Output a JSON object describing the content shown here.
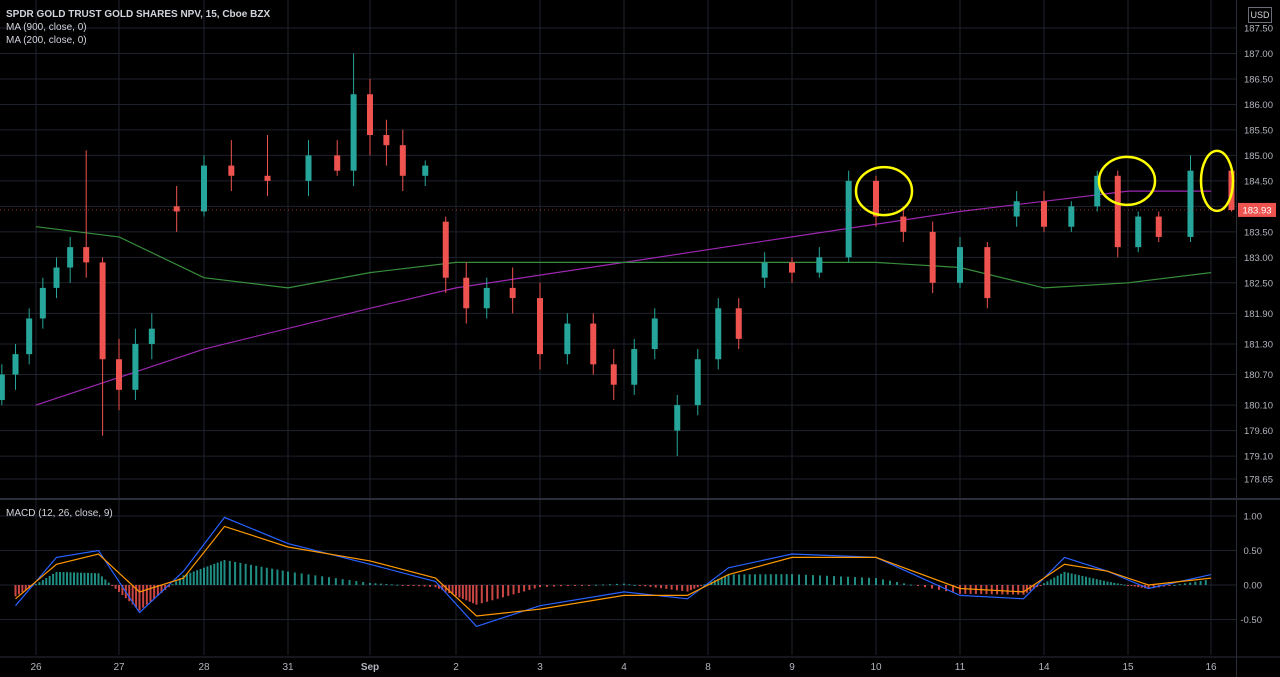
{
  "chart_data": {
    "type": "candlestick",
    "title": "SPDR GOLD TRUST GOLD SHARES NPV, 15, Cboe BZX",
    "currency_label": "USD",
    "indicators": [
      "MA (900, close, 0)",
      "MA (200, close, 0)"
    ],
    "price_axis_ticks": [
      187.5,
      187.0,
      186.5,
      186.0,
      185.5,
      185.0,
      184.5,
      184.0,
      183.5,
      183.0,
      182.5,
      181.9,
      181.3,
      180.7,
      180.1,
      179.6,
      179.1,
      178.65
    ],
    "price_axis_labels": [
      "187.50",
      "187.00",
      "186.50",
      "186.00",
      "185.50",
      "185.00",
      "184.50",
      "184.00",
      "183.50",
      "183.00",
      "182.50",
      "181.90",
      "181.30",
      "180.70",
      "180.10",
      "179.60",
      "179.10",
      "178.65"
    ],
    "last_price": "183.93",
    "x_labels": [
      "26",
      "27",
      "28",
      "31",
      "Sep",
      "2",
      "3",
      "4",
      "8",
      "9",
      "10",
      "11",
      "14",
      "15",
      "16"
    ],
    "price_series": [
      {
        "x": "26",
        "open": 180.2,
        "high": 180.9,
        "low": 180.1,
        "close": 180.7
      },
      {
        "x": "26",
        "open": 180.7,
        "high": 181.3,
        "low": 180.4,
        "close": 181.1
      },
      {
        "x": "26",
        "open": 181.1,
        "high": 182.0,
        "low": 180.9,
        "close": 181.8
      },
      {
        "x": "26",
        "open": 181.8,
        "high": 182.6,
        "low": 181.6,
        "close": 182.4
      },
      {
        "x": "26",
        "open": 182.4,
        "high": 183.0,
        "low": 182.2,
        "close": 182.8
      },
      {
        "x": "26",
        "open": 182.8,
        "high": 183.4,
        "low": 182.5,
        "close": 183.2
      },
      {
        "x": "27",
        "open": 183.2,
        "high": 185.1,
        "low": 182.6,
        "close": 182.9
      },
      {
        "x": "27",
        "open": 182.9,
        "high": 183.0,
        "low": 179.5,
        "close": 181.0
      },
      {
        "x": "27",
        "open": 181.0,
        "high": 181.4,
        "low": 180.0,
        "close": 180.4
      },
      {
        "x": "27",
        "open": 180.4,
        "high": 181.6,
        "low": 180.2,
        "close": 181.3
      },
      {
        "x": "27",
        "open": 181.3,
        "high": 181.9,
        "low": 181.0,
        "close": 181.6
      },
      {
        "x": "28",
        "open": 184.0,
        "high": 184.4,
        "low": 183.5,
        "close": 183.9
      },
      {
        "x": "28",
        "open": 183.9,
        "high": 185.0,
        "low": 183.8,
        "close": 184.8
      },
      {
        "x": "28",
        "open": 184.8,
        "high": 185.3,
        "low": 184.3,
        "close": 184.6
      },
      {
        "x": "31",
        "open": 184.6,
        "high": 185.4,
        "low": 184.2,
        "close": 184.5
      },
      {
        "x": "31",
        "open": 184.5,
        "high": 185.3,
        "low": 184.2,
        "close": 185.0
      },
      {
        "x": "Sep",
        "open": 185.0,
        "high": 185.3,
        "low": 184.6,
        "close": 184.7
      },
      {
        "x": "Sep",
        "open": 184.7,
        "high": 187.0,
        "low": 184.4,
        "close": 186.2
      },
      {
        "x": "Sep",
        "open": 186.2,
        "high": 186.5,
        "low": 185.0,
        "close": 185.4
      },
      {
        "x": "Sep",
        "open": 185.4,
        "high": 185.7,
        "low": 184.8,
        "close": 185.2
      },
      {
        "x": "Sep",
        "open": 185.2,
        "high": 185.5,
        "low": 184.3,
        "close": 184.6
      },
      {
        "x": "2",
        "open": 184.6,
        "high": 184.9,
        "low": 184.4,
        "close": 184.8
      },
      {
        "x": "2",
        "open": 183.7,
        "high": 183.8,
        "low": 182.3,
        "close": 182.6
      },
      {
        "x": "2",
        "open": 182.6,
        "high": 182.9,
        "low": 181.7,
        "close": 182.0
      },
      {
        "x": "2",
        "open": 182.0,
        "high": 182.6,
        "low": 181.8,
        "close": 182.4
      },
      {
        "x": "3",
        "open": 182.4,
        "high": 182.8,
        "low": 181.9,
        "close": 182.2
      },
      {
        "x": "3",
        "open": 182.2,
        "high": 182.5,
        "low": 180.8,
        "close": 181.1
      },
      {
        "x": "3",
        "open": 181.1,
        "high": 181.9,
        "low": 180.9,
        "close": 181.7
      },
      {
        "x": "4",
        "open": 181.7,
        "high": 181.9,
        "low": 180.7,
        "close": 180.9
      },
      {
        "x": "4",
        "open": 180.9,
        "high": 181.2,
        "low": 180.2,
        "close": 180.5
      },
      {
        "x": "4",
        "open": 180.5,
        "high": 181.4,
        "low": 180.3,
        "close": 181.2
      },
      {
        "x": "4",
        "open": 181.2,
        "high": 182.0,
        "low": 181.0,
        "close": 181.8
      },
      {
        "x": "8",
        "open": 179.6,
        "high": 180.3,
        "low": 179.1,
        "close": 180.1
      },
      {
        "x": "8",
        "open": 180.1,
        "high": 181.2,
        "low": 179.9,
        "close": 181.0
      },
      {
        "x": "8",
        "open": 181.0,
        "high": 182.2,
        "low": 180.8,
        "close": 182.0
      },
      {
        "x": "8",
        "open": 182.0,
        "high": 182.2,
        "low": 181.2,
        "close": 181.4
      },
      {
        "x": "9",
        "open": 182.6,
        "high": 183.1,
        "low": 182.4,
        "close": 182.9
      },
      {
        "x": "9",
        "open": 182.9,
        "high": 183.0,
        "low": 182.5,
        "close": 182.7
      },
      {
        "x": "9",
        "open": 182.7,
        "high": 183.2,
        "low": 182.6,
        "close": 183.0
      },
      {
        "x": "10",
        "open": 183.0,
        "high": 184.7,
        "low": 182.9,
        "close": 184.5
      },
      {
        "x": "10",
        "open": 184.5,
        "high": 184.6,
        "low": 183.6,
        "close": 183.8
      },
      {
        "x": "10",
        "open": 183.8,
        "high": 184.0,
        "low": 183.3,
        "close": 183.5
      },
      {
        "x": "11",
        "open": 183.5,
        "high": 183.7,
        "low": 182.3,
        "close": 182.5
      },
      {
        "x": "11",
        "open": 182.5,
        "high": 183.4,
        "low": 182.4,
        "close": 183.2
      },
      {
        "x": "11",
        "open": 183.2,
        "high": 183.3,
        "low": 182.0,
        "close": 182.2
      },
      {
        "x": "14",
        "open": 183.8,
        "high": 184.3,
        "low": 183.6,
        "close": 184.1
      },
      {
        "x": "14",
        "open": 184.1,
        "high": 184.3,
        "low": 183.5,
        "close": 183.6
      },
      {
        "x": "14",
        "open": 183.6,
        "high": 184.1,
        "low": 183.5,
        "close": 184.0
      },
      {
        "x": "15",
        "open": 184.0,
        "high": 184.7,
        "low": 183.9,
        "close": 184.6
      },
      {
        "x": "15",
        "open": 184.6,
        "high": 184.7,
        "low": 183.0,
        "close": 183.2
      },
      {
        "x": "15",
        "open": 183.2,
        "high": 183.9,
        "low": 183.1,
        "close": 183.8
      },
      {
        "x": "15",
        "open": 183.8,
        "high": 183.9,
        "low": 183.3,
        "close": 183.4
      },
      {
        "x": "16",
        "open": 183.4,
        "high": 185.0,
        "low": 183.3,
        "close": 184.7
      },
      {
        "x": "16",
        "open": 184.7,
        "high": 184.8,
        "low": 183.9,
        "close": 183.93
      }
    ],
    "ma_900": [
      {
        "x": "26",
        "y": 180.1
      },
      {
        "x": "28",
        "y": 181.2
      },
      {
        "x": "Sep",
        "y": 182.0
      },
      {
        "x": "2",
        "y": 182.4
      },
      {
        "x": "4",
        "y": 182.9
      },
      {
        "x": "9",
        "y": 183.4
      },
      {
        "x": "11",
        "y": 183.9
      },
      {
        "x": "14",
        "y": 184.1
      },
      {
        "x": "15",
        "y": 184.3
      },
      {
        "x": "16",
        "y": 184.3
      }
    ],
    "ma_200": [
      {
        "x": "26",
        "y": 183.6
      },
      {
        "x": "27",
        "y": 183.4
      },
      {
        "x": "28",
        "y": 182.6
      },
      {
        "x": "31",
        "y": 182.4
      },
      {
        "x": "Sep",
        "y": 182.7
      },
      {
        "x": "2",
        "y": 182.9
      },
      {
        "x": "3",
        "y": 182.9
      },
      {
        "x": "4",
        "y": 182.9
      },
      {
        "x": "8",
        "y": 182.9
      },
      {
        "x": "9",
        "y": 182.9
      },
      {
        "x": "10",
        "y": 182.9
      },
      {
        "x": "11",
        "y": 182.8
      },
      {
        "x": "14",
        "y": 182.4
      },
      {
        "x": "15",
        "y": 182.5
      },
      {
        "x": "16",
        "y": 182.7
      }
    ],
    "annotations": [
      {
        "type": "ellipse",
        "x": "10",
        "y": 184.3,
        "color": "#ffff00"
      },
      {
        "type": "ellipse",
        "x": "15",
        "y": 184.5,
        "color": "#ffff00"
      },
      {
        "type": "ellipse",
        "x": "16",
        "y": 184.5,
        "color": "#ffff00"
      }
    ],
    "macd": {
      "label": "MACD (12, 26, close, 9)",
      "axis_ticks": [
        1.0,
        0.5,
        0.0,
        -0.5
      ],
      "axis_labels": [
        "1.00",
        "0.50",
        "0.00",
        "-0.50"
      ],
      "series": [
        {
          "name": "MACD",
          "points": [
            {
              "x": "26",
              "y": -0.3
            },
            {
              "x": "26",
              "y": 0.4
            },
            {
              "x": "27",
              "y": 0.5
            },
            {
              "x": "27",
              "y": -0.4
            },
            {
              "x": "28",
              "y": 0.2
            },
            {
              "x": "28",
              "y": 0.98
            },
            {
              "x": "31",
              "y": 0.6
            },
            {
              "x": "Sep",
              "y": 0.3
            },
            {
              "x": "2",
              "y": 0.05
            },
            {
              "x": "2",
              "y": -0.6
            },
            {
              "x": "3",
              "y": -0.3
            },
            {
              "x": "4",
              "y": -0.1
            },
            {
              "x": "8",
              "y": -0.2
            },
            {
              "x": "8",
              "y": 0.25
            },
            {
              "x": "9",
              "y": 0.45
            },
            {
              "x": "10",
              "y": 0.4
            },
            {
              "x": "11",
              "y": -0.15
            },
            {
              "x": "14",
              "y": -0.2
            },
            {
              "x": "14",
              "y": 0.4
            },
            {
              "x": "15",
              "y": 0.2
            },
            {
              "x": "15",
              "y": -0.05
            },
            {
              "x": "16",
              "y": 0.15
            }
          ]
        },
        {
          "name": "Signal",
          "points": [
            {
              "x": "26",
              "y": -0.2
            },
            {
              "x": "26",
              "y": 0.3
            },
            {
              "x": "27",
              "y": 0.45
            },
            {
              "x": "27",
              "y": -0.1
            },
            {
              "x": "28",
              "y": 0.1
            },
            {
              "x": "28",
              "y": 0.85
            },
            {
              "x": "31",
              "y": 0.55
            },
            {
              "x": "Sep",
              "y": 0.35
            },
            {
              "x": "2",
              "y": 0.1
            },
            {
              "x": "2",
              "y": -0.45
            },
            {
              "x": "3",
              "y": -0.35
            },
            {
              "x": "4",
              "y": -0.15
            },
            {
              "x": "8",
              "y": -0.15
            },
            {
              "x": "8",
              "y": 0.15
            },
            {
              "x": "9",
              "y": 0.4
            },
            {
              "x": "10",
              "y": 0.4
            },
            {
              "x": "11",
              "y": -0.05
            },
            {
              "x": "14",
              "y": -0.1
            },
            {
              "x": "14",
              "y": 0.3
            },
            {
              "x": "15",
              "y": 0.2
            },
            {
              "x": "15",
              "y": 0.0
            },
            {
              "x": "16",
              "y": 0.1
            }
          ]
        }
      ]
    },
    "colors": {
      "up": "#26a69a",
      "down": "#ef5350",
      "ma_900": "#9c27b0",
      "ma_200": "#388e3c",
      "macd_line": "#2962ff",
      "signal_line": "#ff9800",
      "highlight": "#ffff00"
    }
  }
}
